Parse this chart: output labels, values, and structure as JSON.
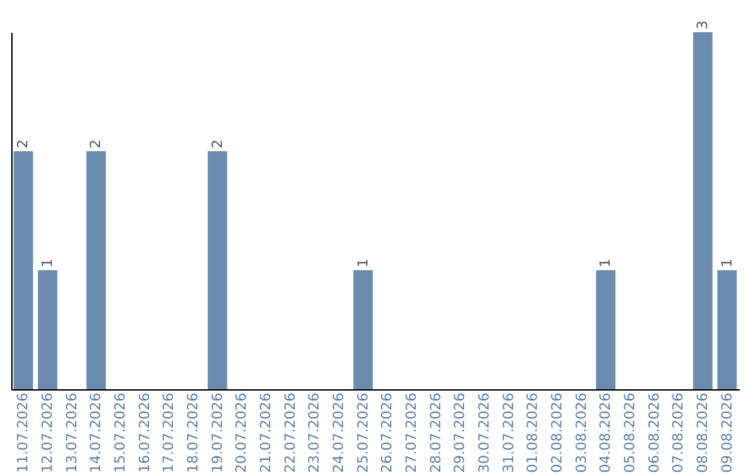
{
  "chart_data": {
    "type": "bar",
    "categories": [
      "11.07.2026",
      "12.07.2026",
      "13.07.2026",
      "14.07.2026",
      "15.07.2026",
      "16.07.2026",
      "17.07.2026",
      "18.07.2026",
      "19.07.2026",
      "20.07.2026",
      "21.07.2026",
      "22.07.2026",
      "23.07.2026",
      "24.07.2026",
      "25.07.2026",
      "26.07.2026",
      "27.07.2026",
      "28.07.2026",
      "29.07.2026",
      "30.07.2026",
      "31.07.2026",
      "01.08.2026",
      "02.08.2026",
      "03.08.2026",
      "04.08.2026",
      "05.08.2026",
      "06.08.2026",
      "07.08.2026",
      "08.08.2026",
      "09.08.2026"
    ],
    "values": [
      2,
      1,
      0,
      2,
      0,
      0,
      0,
      0,
      2,
      0,
      0,
      0,
      0,
      0,
      1,
      0,
      0,
      0,
      0,
      0,
      0,
      0,
      0,
      0,
      1,
      0,
      0,
      0,
      3,
      1
    ],
    "value_labels": [
      "2",
      "1",
      null,
      "2",
      null,
      null,
      null,
      null,
      "2",
      null,
      null,
      null,
      null,
      null,
      "1",
      null,
      null,
      null,
      null,
      null,
      null,
      null,
      null,
      null,
      "1",
      null,
      null,
      null,
      "3",
      "1"
    ],
    "color": "#6b8cae",
    "grid": false,
    "tick_labels": "x"
  }
}
